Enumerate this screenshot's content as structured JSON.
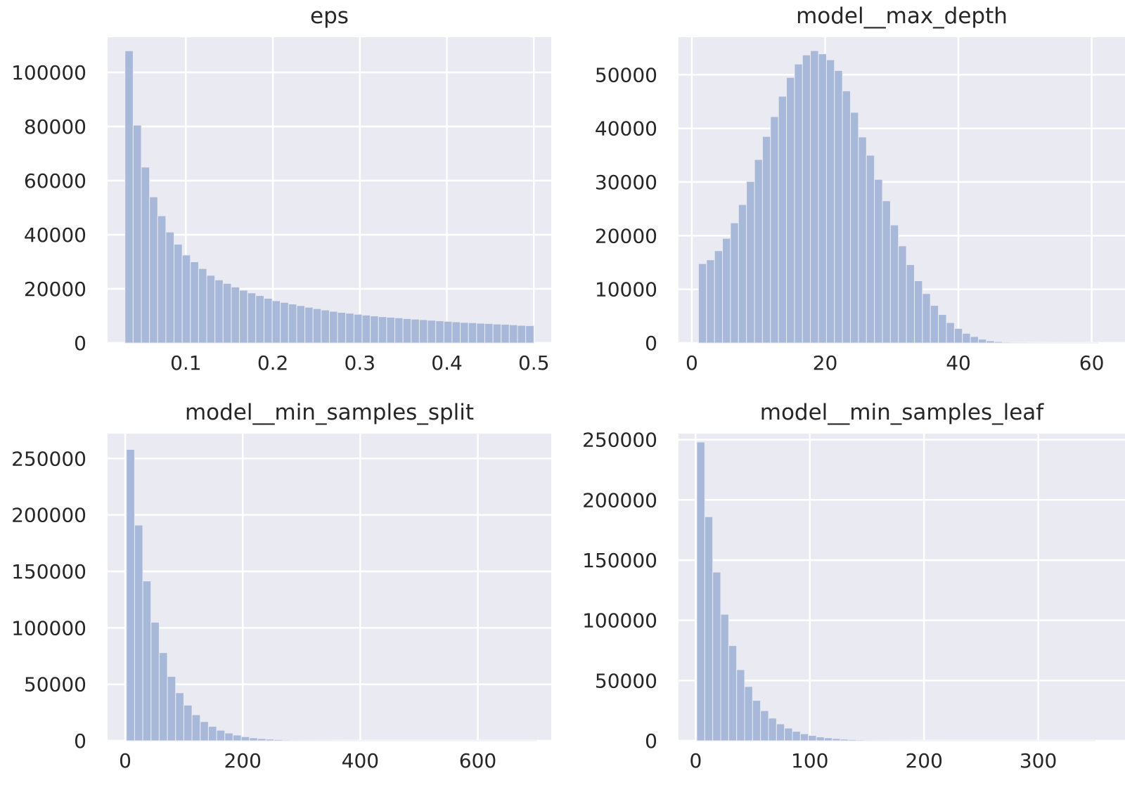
{
  "chart_data": [
    {
      "type": "bar",
      "title": "eps",
      "xlabel": "",
      "ylabel": "",
      "x_range": [
        0.03,
        0.5
      ],
      "xlim": [
        0.01,
        0.52
      ],
      "ylim": [
        0,
        113000
      ],
      "xticks": [
        0.1,
        0.2,
        0.3,
        0.4,
        0.5
      ],
      "xtick_labels": [
        "0.1",
        "0.2",
        "0.3",
        "0.4",
        "0.5"
      ],
      "yticks": [
        0,
        20000,
        40000,
        60000,
        80000,
        100000
      ],
      "ytick_labels": [
        "0",
        "20000",
        "40000",
        "60000",
        "80000",
        "100000"
      ],
      "grid": true,
      "values": [
        108000,
        80500,
        65000,
        54000,
        47000,
        41000,
        36500,
        32500,
        30000,
        27500,
        25000,
        23300,
        22000,
        20700,
        19500,
        18500,
        17500,
        16500,
        15600,
        15000,
        14400,
        13800,
        13200,
        12700,
        12200,
        11700,
        11300,
        11000,
        10600,
        10300,
        10000,
        9700,
        9500,
        9300,
        9000,
        8800,
        8600,
        8400,
        8200,
        8000,
        7800,
        7600,
        7500,
        7300,
        7200,
        7000,
        6900,
        6700,
        6500,
        6400
      ]
    },
    {
      "type": "bar",
      "title": "model__max_depth",
      "xlabel": "",
      "ylabel": "",
      "x_range": [
        1,
        61
      ],
      "xlim": [
        -2,
        65
      ],
      "ylim": [
        0,
        57000
      ],
      "xticks": [
        0,
        20,
        40,
        60
      ],
      "xtick_labels": [
        "0",
        "20",
        "40",
        "60"
      ],
      "yticks": [
        0,
        10000,
        20000,
        30000,
        40000,
        50000
      ],
      "ytick_labels": [
        "0",
        "10000",
        "20000",
        "30000",
        "40000",
        "50000"
      ],
      "grid": true,
      "values": [
        14800,
        15500,
        17200,
        19500,
        22400,
        25800,
        30100,
        34200,
        38500,
        42200,
        46000,
        49500,
        52000,
        53700,
        54500,
        53900,
        52800,
        50800,
        47000,
        43000,
        38400,
        35000,
        30500,
        26500,
        22000,
        18100,
        14600,
        11600,
        9200,
        7000,
        5300,
        3800,
        2700,
        1800,
        1200,
        700,
        400,
        250,
        150,
        90,
        60,
        40,
        25,
        15,
        10,
        6,
        4,
        3,
        2,
        1
      ]
    },
    {
      "type": "bar",
      "title": "model__min_samples_split",
      "xlabel": "",
      "ylabel": "",
      "x_range": [
        2,
        700
      ],
      "xlim": [
        -30,
        725
      ],
      "ylim": [
        0,
        272000
      ],
      "xticks": [
        0,
        200,
        400,
        600
      ],
      "xtick_labels": [
        "0",
        "200",
        "400",
        "600"
      ],
      "yticks": [
        0,
        50000,
        100000,
        150000,
        200000,
        250000
      ],
      "ytick_labels": [
        "0",
        "50000",
        "100000",
        "150000",
        "200000",
        "250000"
      ],
      "grid": true,
      "values": [
        258000,
        191000,
        141500,
        105000,
        78000,
        57000,
        42500,
        31500,
        23000,
        17000,
        12700,
        9300,
        6800,
        5000,
        3600,
        2600,
        1900,
        1400,
        1000,
        700,
        500,
        380,
        270,
        200,
        150,
        110,
        80,
        60,
        45,
        35,
        25,
        20,
        15,
        12,
        10,
        8,
        6,
        5,
        4,
        3,
        3,
        2,
        2,
        2,
        1,
        1,
        1,
        1,
        1,
        1
      ]
    },
    {
      "type": "bar",
      "title": "model__min_samples_leaf",
      "xlabel": "",
      "ylabel": "",
      "x_range": [
        1,
        350
      ],
      "xlim": [
        -15,
        376
      ],
      "ylim": [
        0,
        255000
      ],
      "xticks": [
        0,
        100,
        200,
        300
      ],
      "xtick_labels": [
        "0",
        "100",
        "200",
        "300"
      ],
      "yticks": [
        0,
        50000,
        100000,
        150000,
        200000,
        250000
      ],
      "ytick_labels": [
        "0",
        "50000",
        "100000",
        "150000",
        "200000",
        "250000"
      ],
      "grid": true,
      "values": [
        248000,
        186000,
        140000,
        105000,
        79000,
        59000,
        45000,
        33500,
        25000,
        18800,
        14000,
        10500,
        7800,
        5800,
        4400,
        3200,
        2400,
        1800,
        1300,
        950,
        700,
        520,
        390,
        290,
        210,
        160,
        120,
        90,
        65,
        50,
        37,
        28,
        20,
        15,
        11,
        8,
        6,
        5,
        4,
        3,
        2,
        2,
        1,
        1,
        1,
        1,
        1,
        1,
        1,
        1
      ]
    }
  ]
}
